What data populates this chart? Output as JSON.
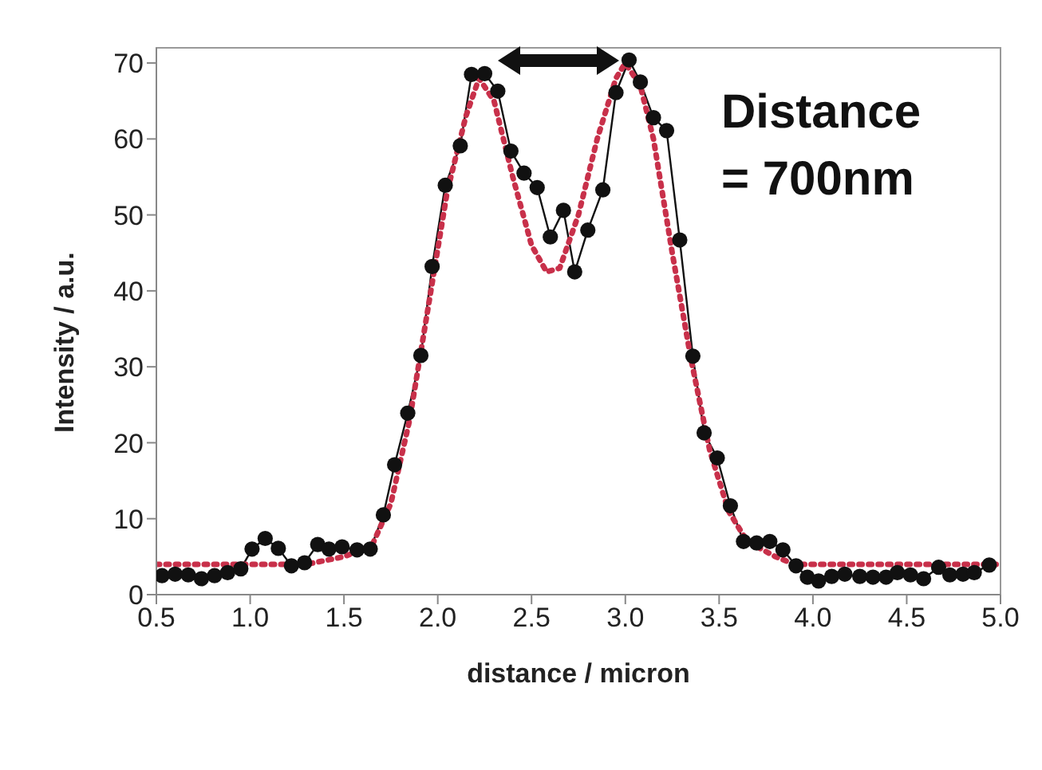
{
  "chart_data": {
    "type": "line",
    "xlabel": "distance / micron",
    "ylabel": "Intensity / a.u.",
    "xlim": [
      0.5,
      5.0
    ],
    "xticks": [
      {
        "value": 0.5,
        "label": "0.5"
      },
      {
        "value": 1,
        "label": "1.0"
      },
      {
        "value": 1.5,
        "label": "1.5"
      },
      {
        "value": 2,
        "label": "2.0"
      },
      {
        "value": 2.5,
        "label": "2.5"
      },
      {
        "value": 3,
        "label": "3.0"
      },
      {
        "value": 3.5,
        "label": "3.5"
      },
      {
        "value": 4,
        "label": "4.0"
      },
      {
        "value": 4.5,
        "label": "4.5"
      },
      {
        "value": 5,
        "label": "5.0"
      }
    ],
    "ylim": [
      0,
      72
    ],
    "yticks": [
      0,
      10,
      20,
      30,
      40,
      50,
      60,
      70
    ],
    "grid": false,
    "annotations": [
      "Distance = 700nm"
    ],
    "series": [
      {
        "color": "#111111",
        "marker": "circle",
        "line_style": "solid",
        "x": [
          0.53,
          0.6,
          0.67,
          0.74,
          0.81,
          0.88,
          0.95,
          1.01,
          1.08,
          1.15,
          1.22,
          1.29,
          1.36,
          1.42,
          1.49,
          1.57,
          1.64,
          1.71,
          1.77,
          1.84,
          1.91,
          1.97,
          2.04,
          2.12,
          2.18,
          2.25,
          2.32,
          2.39,
          2.46,
          2.53,
          2.6,
          2.67,
          2.73,
          2.8,
          2.88,
          2.95,
          3.02,
          3.08,
          3.15,
          3.22,
          3.29,
          3.36,
          3.42,
          3.49,
          3.56,
          3.63,
          3.7,
          3.77,
          3.84,
          3.91,
          3.97,
          4.03,
          4.1,
          4.17,
          4.25,
          4.32,
          4.39,
          4.45,
          4.52,
          4.59,
          4.67,
          4.73,
          4.8,
          4.86,
          4.94
        ],
        "values": [
          2.5,
          2.7,
          2.6,
          2.1,
          2.5,
          2.9,
          3.4,
          6.0,
          7.4,
          6.1,
          3.8,
          4.2,
          6.6,
          6.0,
          6.3,
          5.9,
          6.0,
          10.5,
          17.1,
          23.9,
          31.5,
          43.2,
          53.9,
          59.1,
          68.5,
          68.6,
          66.3,
          58.4,
          55.5,
          53.6,
          47.1,
          50.6,
          42.5,
          48.0,
          53.3,
          66.1,
          70.4,
          67.5,
          62.8,
          61.1,
          46.7,
          31.4,
          21.3,
          18.0,
          11.7,
          7.0,
          6.8,
          7.0,
          5.9,
          3.8,
          2.3,
          1.8,
          2.4,
          2.7,
          2.4,
          2.3,
          2.3,
          2.9,
          2.6,
          2.1,
          3.6,
          2.6,
          2.7,
          2.9,
          3.9
        ]
      },
      {
        "color": "#c8304a",
        "marker": "none",
        "line_style": "dotted",
        "x": [
          0.5,
          1.3,
          1.5,
          1.65,
          1.75,
          1.85,
          1.95,
          2.05,
          2.15,
          2.22,
          2.3,
          2.4,
          2.5,
          2.58,
          2.65,
          2.75,
          2.85,
          2.95,
          3.0,
          3.08,
          3.15,
          3.25,
          3.35,
          3.45,
          3.55,
          3.65,
          3.8,
          3.9,
          5.0
        ],
        "values": [
          4,
          4,
          5,
          6.5,
          12,
          23,
          38,
          53,
          63,
          68,
          65,
          55,
          46,
          42.5,
          43,
          50,
          60,
          68,
          70,
          67,
          60,
          45,
          31,
          19,
          11,
          7,
          5,
          4,
          4
        ]
      }
    ]
  }
}
